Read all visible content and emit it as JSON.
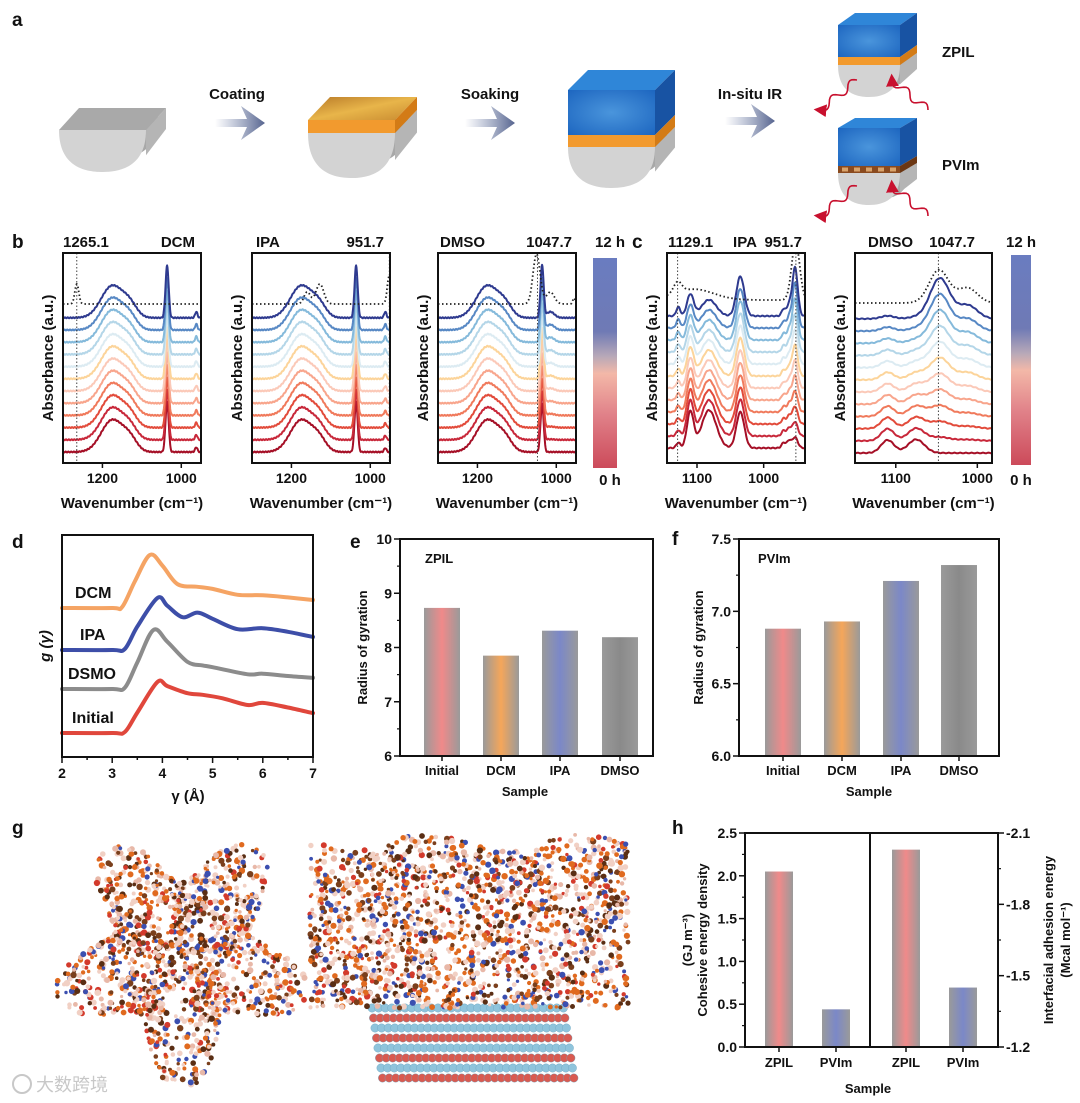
{
  "figure": {
    "panel_labels": {
      "a": "a",
      "b": "b",
      "c": "c",
      "d": "d",
      "e": "e",
      "f": "f",
      "g": "g",
      "h": "h"
    },
    "schematic": {
      "steps": [
        "Coating",
        "Soaking",
        "In-situ  IR"
      ],
      "products": [
        "ZPIL",
        "PVIm"
      ]
    },
    "colorbar": {
      "top_label": "12 h",
      "bottom_label": "0 h"
    },
    "watermark": "大数跨境",
    "colors": {
      "curves_0h_to_12h": [
        "#a50f26",
        "#c8283a",
        "#e24b3b",
        "#f07a5c",
        "#f8a58c",
        "#fbc9b8",
        "#fcd49a",
        "#dcebf2",
        "#b4d6e8",
        "#85badb",
        "#5788c4",
        "#2e3a8f"
      ],
      "initial": "#f08a8a",
      "dcm": "#f5a65a",
      "ipa": "#7b88c8",
      "dmso": "#8a8a8a"
    }
  },
  "chart_data": [
    {
      "id": "b-dcm",
      "type": "line",
      "panel": "b",
      "title_left": "1265.1",
      "title_right": "DCM",
      "xlabel": "Wavenumber (cm⁻¹)",
      "ylabel": "Absorbance (a.u.)",
      "xlim": [
        1300,
        950
      ],
      "xticks": [
        "1200",
        "1000"
      ],
      "markers": [
        1265.1
      ],
      "n_curves": 12,
      "peaks": [
        {
          "center": 1175,
          "width": 28,
          "amp": [
            0.8,
            0.8
          ]
        },
        {
          "center": 1130,
          "width": 18,
          "amp": [
            0.28,
            0.28
          ]
        },
        {
          "center": 1036,
          "width": 4,
          "amp": [
            1.25,
            1.3
          ]
        },
        {
          "center": 962,
          "width": 3,
          "amp": [
            0.12,
            0.15
          ]
        }
      ],
      "reference_peaks": [
        {
          "center": 1265,
          "width": 5,
          "amp": 0.5
        }
      ]
    },
    {
      "id": "b-ipa",
      "type": "line",
      "panel": "b",
      "title_left": "IPA",
      "title_right": "951.7",
      "xlabel": "Wavenumber (cm⁻¹)",
      "ylabel": "Absorbance (a.u.)",
      "xlim": [
        1300,
        950
      ],
      "xticks": [
        "1200",
        "1000"
      ],
      "markers": [
        951.7
      ],
      "n_curves": 12,
      "peaks": [
        {
          "center": 1175,
          "width": 28,
          "amp": [
            0.8,
            0.8
          ]
        },
        {
          "center": 1130,
          "width": 18,
          "amp": [
            0.28,
            0.28
          ]
        },
        {
          "center": 1036,
          "width": 4,
          "amp": [
            1.25,
            1.3
          ]
        },
        {
          "center": 962,
          "width": 3,
          "amp": [
            0.1,
            0.15
          ]
        }
      ],
      "reference_peaks": [
        {
          "center": 1160,
          "width": 8,
          "amp": 0.3
        },
        {
          "center": 1128,
          "width": 10,
          "amp": 0.5
        },
        {
          "center": 952,
          "width": 5,
          "amp": 0.7
        }
      ]
    },
    {
      "id": "b-dmso",
      "type": "line",
      "panel": "b",
      "title_left": "DMSO",
      "title_right": "1047.7",
      "xlabel": "Wavenumber (cm⁻¹)",
      "ylabel": "Absorbance (a.u.)",
      "xlim": [
        1300,
        950
      ],
      "xticks": [
        "1200",
        "1000"
      ],
      "markers": [
        1047.7
      ],
      "n_curves": 12,
      "peaks": [
        {
          "center": 1175,
          "width": 28,
          "amp": [
            0.8,
            0.8
          ]
        },
        {
          "center": 1130,
          "width": 18,
          "amp": [
            0.28,
            0.28
          ]
        },
        {
          "center": 1036,
          "width": 4,
          "amp": [
            1.2,
            1.3
          ]
        },
        {
          "center": 1015,
          "width": 10,
          "amp": [
            0.0,
            0.15
          ]
        }
      ],
      "reference_peaks": [
        {
          "center": 1050,
          "width": 9,
          "amp": 1.25
        },
        {
          "center": 1015,
          "width": 10,
          "amp": 0.3
        },
        {
          "center": 955,
          "width": 3,
          "amp": 0.15
        }
      ]
    },
    {
      "id": "c-ipa",
      "type": "line",
      "panel": "c",
      "title_left": "1129.1",
      "title_center": "IPA",
      "title_right": "951.7",
      "xlabel": "Wavenumber (cm⁻¹)",
      "ylabel": "Absorbance (a.u.)",
      "xlim": [
        1145,
        938
      ],
      "xticks": [
        "1100",
        "1000"
      ],
      "markers": [
        1129.1,
        951.7
      ],
      "n_curves": 12,
      "peaks": [
        {
          "center": 1128,
          "width": 3,
          "amp": [
            0.15,
            0.25
          ]
        },
        {
          "center": 1110,
          "width": 5,
          "amp": [
            1.0,
            0.6
          ]
        },
        {
          "center": 1082,
          "width": 11,
          "amp": [
            1.05,
            0.45
          ]
        },
        {
          "center": 1035,
          "width": 6,
          "amp": [
            1.0,
            1.1
          ]
        },
        {
          "center": 970,
          "width": 3,
          "amp": [
            0.15,
            0.2
          ]
        },
        {
          "center": 962,
          "width": 3,
          "amp": [
            0.2,
            0.3
          ]
        },
        {
          "center": 953,
          "width": 4,
          "amp": [
            0.3,
            1.35
          ]
        }
      ],
      "reference_peaks": [
        {
          "center": 1129,
          "width": 6,
          "amp": 0.3
        },
        {
          "center": 1105,
          "width": 30,
          "amp": 0.3
        },
        {
          "center": 952,
          "width": 6,
          "amp": 1.6
        }
      ]
    },
    {
      "id": "c-dmso",
      "type": "line",
      "panel": "c",
      "title_left": "DMSO",
      "title_right": "1047.7",
      "xlabel": "Wavenumber (cm⁻¹)",
      "ylabel": "Absorbance (a.u.)",
      "xlim": [
        1150,
        982
      ],
      "xticks": [
        "1100",
        "1000"
      ],
      "markers": [
        1047.7
      ],
      "n_curves": 12,
      "peaks": [
        {
          "center": 1110,
          "width": 8,
          "amp": [
            0.43,
            0.1
          ]
        },
        {
          "center": 1075,
          "width": 10,
          "amp": [
            0.45,
            0.05
          ]
        },
        {
          "center": 1046,
          "width": 12,
          "amp": [
            0.0,
            1.35
          ]
        },
        {
          "center": 1012,
          "width": 12,
          "amp": [
            0.0,
            0.45
          ]
        }
      ],
      "reference_peaks": [
        {
          "center": 1047,
          "width": 12,
          "amp": 1.1
        },
        {
          "center": 1012,
          "width": 12,
          "amp": 0.5
        }
      ]
    },
    {
      "id": "d-rdf",
      "type": "line",
      "panel": "d",
      "xlabel": "γ (Å)",
      "ylabel": "g (γ)",
      "xlim": [
        2,
        7
      ],
      "xticks": [
        "2",
        "3",
        "4",
        "5",
        "6",
        "7"
      ],
      "series": [
        {
          "name": "DCM",
          "color": "#f5a464",
          "x": [
            2,
            3,
            3.2,
            3.45,
            3.75,
            4.0,
            4.3,
            4.7,
            5,
            5.5,
            6,
            6.5,
            7
          ],
          "y": [
            0,
            0,
            0.02,
            0.5,
            1.0,
            0.8,
            0.45,
            0.4,
            0.36,
            0.25,
            0.24,
            0.2,
            0.15
          ]
        },
        {
          "name": "IPA",
          "color": "#3d4ea8",
          "x": [
            2,
            3,
            3.25,
            3.5,
            3.9,
            4.1,
            4.4,
            4.7,
            5,
            5.5,
            6,
            6.5,
            7
          ],
          "y": [
            0,
            0,
            0.02,
            0.45,
            1.0,
            0.85,
            0.63,
            0.72,
            0.6,
            0.4,
            0.42,
            0.35,
            0.25
          ]
        },
        {
          "name": "DSMO",
          "color": "#8c8c8c",
          "x": [
            2,
            3,
            3.25,
            3.5,
            3.82,
            4.1,
            4.5,
            4.8,
            5,
            5.7,
            6,
            6.5,
            7
          ],
          "y": [
            0,
            0,
            0.02,
            0.45,
            1.0,
            0.8,
            0.46,
            0.4,
            0.37,
            0.25,
            0.26,
            0.22,
            0.19
          ]
        },
        {
          "name": "Initial",
          "color": "#e0473c",
          "x": [
            2,
            3,
            3.25,
            3.5,
            3.9,
            4.1,
            4.5,
            4.8,
            5.2,
            5.7,
            6,
            6.5,
            7
          ],
          "y": [
            0,
            0,
            0.02,
            0.4,
            1.0,
            0.92,
            0.78,
            0.75,
            0.68,
            0.55,
            0.59,
            0.5,
            0.39
          ]
        }
      ]
    },
    {
      "id": "e-zpil",
      "type": "bar",
      "panel": "e",
      "annotation": "ZPIL",
      "categories": [
        "Initial",
        "DCM",
        "IPA",
        "DMSO"
      ],
      "values": [
        8.73,
        7.85,
        8.31,
        8.19
      ],
      "xlabel": "Sample",
      "ylabel": "Radius of gyration",
      "ylim": [
        6,
        10
      ],
      "yticks": [
        "6",
        "7",
        "8",
        "9",
        "10"
      ]
    },
    {
      "id": "f-pvim",
      "type": "bar",
      "panel": "f",
      "annotation": "PVIm",
      "categories": [
        "Initial",
        "DCM",
        "IPA",
        "DMSO"
      ],
      "values": [
        6.88,
        6.93,
        7.21,
        7.32
      ],
      "xlabel": "Sample",
      "ylabel": "Radius of gyration",
      "ylim": [
        6,
        7.5
      ],
      "yticks": [
        "6.0",
        "6.5",
        "7.0",
        "7.5"
      ]
    },
    {
      "id": "h-energy",
      "type": "bar",
      "panel": "h",
      "xlabel": "Sample",
      "left": {
        "categories": [
          "ZPIL",
          "PVIm"
        ],
        "values": [
          2.05,
          0.44
        ],
        "ylabel": "Cohesive energy density",
        "ylabel_unit": "(GJ m⁻³)",
        "ylim": [
          0,
          2.5
        ],
        "yticks": [
          "0.0",
          "0.5",
          "1.0",
          "1.5",
          "2.0",
          "2.5"
        ]
      },
      "right": {
        "categories": [
          "ZPIL",
          "PVIm"
        ],
        "values": [
          -2.03,
          -1.45
        ],
        "ylabel": "Interfacial adhesion energy",
        "ylabel_unit": "(Mcal mol⁻¹)",
        "ylim": [
          -1.2,
          -2.1
        ],
        "yticks": [
          "-1.2",
          "-1.5",
          "-1.8",
          "-2.1"
        ]
      }
    }
  ]
}
